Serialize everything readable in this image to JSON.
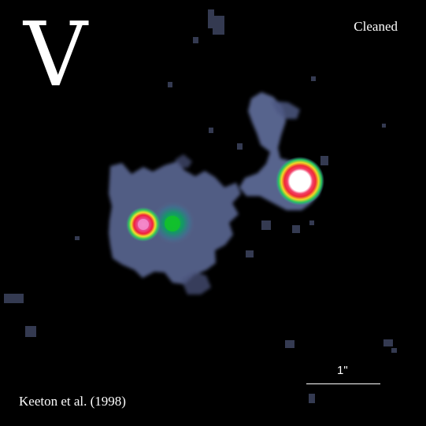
{
  "image": {
    "band": "V",
    "mode": "Cleaned",
    "credit": "Keeton et al. (1998)",
    "scale_bar_label": "1\""
  },
  "colors": {
    "background": "#000000",
    "diffuse_halo": "#5a6287",
    "green_core": "#10c040",
    "yellow_ring": "#e8e020",
    "red_ring": "#e0204a",
    "pink_core": "#f070b0",
    "white_core": "#ffffff",
    "text": "#ffffff"
  },
  "icons": {
    "left_compact_source": "lensed-image-icon",
    "galaxy_core": "galaxy-core-icon",
    "right_bright_source": "bright-quasar-icon"
  }
}
